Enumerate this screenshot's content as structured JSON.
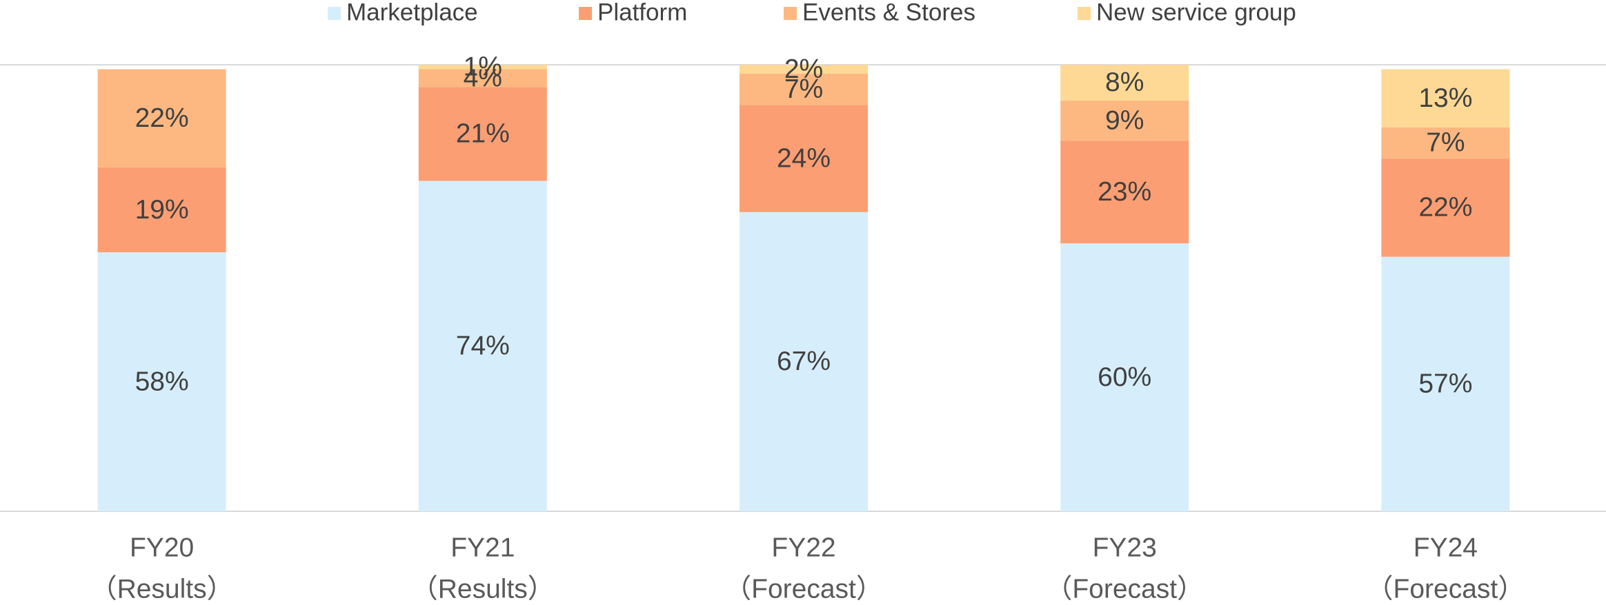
{
  "chart_data": {
    "type": "stacked_bar",
    "categories": [
      [
        "FY20",
        "（Results）"
      ],
      [
        "FY21",
        "（Results）"
      ],
      [
        "FY22",
        "（Forecast）"
      ],
      [
        "FY23",
        "（Forecast）"
      ],
      [
        "FY24",
        "（Forecast）"
      ]
    ],
    "series": [
      {
        "name": "Marketplace",
        "color": "#d6eefb",
        "values": [
          58,
          74,
          67,
          60,
          57
        ],
        "value_labels": [
          "58%",
          "74%",
          "67%",
          "60%",
          "57%"
        ]
      },
      {
        "name": "Platform",
        "color": "#fb9e73",
        "values": [
          19,
          21,
          24,
          23,
          22
        ],
        "value_labels": [
          "19%",
          "21%",
          "24%",
          "23%",
          "22%"
        ]
      },
      {
        "name": "Events & Stores",
        "color": "#fdb882",
        "values": [
          22,
          4,
          7,
          9,
          7
        ],
        "value_labels": [
          "22%",
          "4%",
          "7%",
          "9%",
          "7%"
        ]
      },
      {
        "name": "New service group",
        "color": "#fdd995",
        "values": [
          null,
          1,
          2,
          8,
          13
        ],
        "value_labels": [
          null,
          "1%",
          "2%",
          "8%",
          "13%"
        ]
      }
    ],
    "ylim": [
      0,
      100
    ],
    "legend": "top"
  }
}
